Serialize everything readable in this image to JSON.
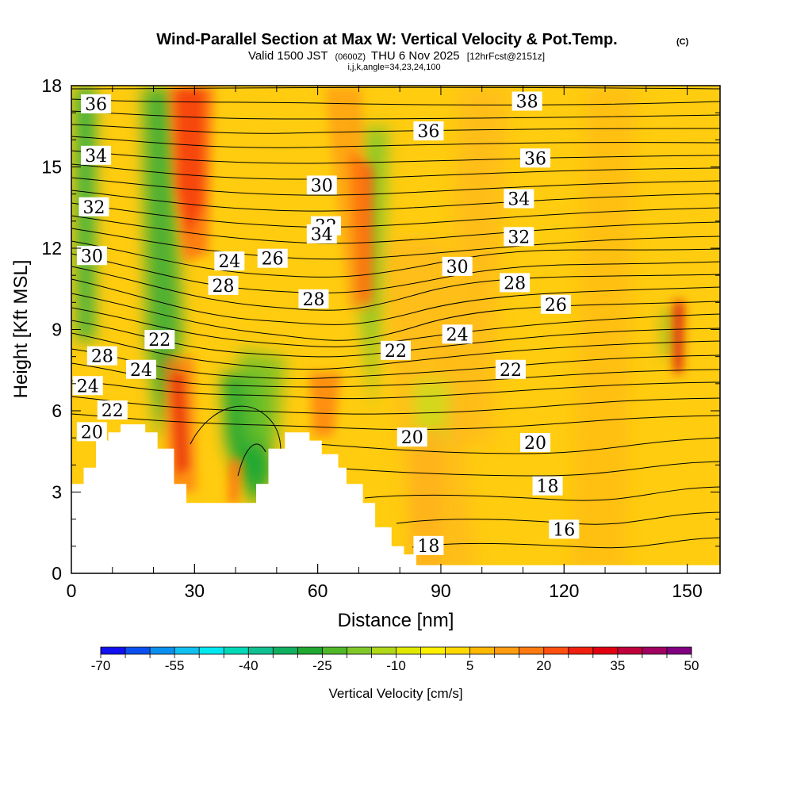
{
  "chart_data": {
    "type": "heatmap",
    "title": "Wind-Parallel Section at Max W: Vertical Velocity & Pot.Temp.",
    "title_mark": "(C)",
    "subtitle_parts": [
      "Valid 1500 JST",
      "(0600Z)",
      "THU 6 Nov 2025",
      "[12hrFcst@2151z]"
    ],
    "subtitle2": "i,j,k,angle=34,23,24,100",
    "xlabel": "Distance [nm]",
    "ylabel": "Height [Kft MSL]",
    "xlim": [
      0,
      158
    ],
    "ylim": [
      0,
      18
    ],
    "x_ticks": [
      0,
      30,
      60,
      90,
      120,
      150
    ],
    "y_ticks": [
      0,
      3,
      6,
      9,
      12,
      15,
      18
    ],
    "colorbar": {
      "label": "Vertical Velocity [cm/s]",
      "min": -70,
      "max": 50,
      "step": 5,
      "tick_values": [
        -70,
        -55,
        -40,
        -25,
        -10,
        5,
        20,
        35,
        50
      ],
      "colors": [
        "#1010f0",
        "#0a50f0",
        "#0a90ee",
        "#10c0f0",
        "#00e8f0",
        "#00d8b8",
        "#10c090",
        "#10b060",
        "#20a830",
        "#50b828",
        "#80c828",
        "#b0d818",
        "#e0e800",
        "#fff000",
        "#ffd800",
        "#ffb800",
        "#ff9c10",
        "#ff7a10",
        "#ff5010",
        "#f02010",
        "#e00010",
        "#c0003a",
        "#a00060",
        "#800080"
      ]
    },
    "theta_contour_labels": [
      {
        "v": "36",
        "x": 6,
        "y": 17.3
      },
      {
        "v": "34",
        "x": 6,
        "y": 15.4
      },
      {
        "v": "32",
        "x": 5.5,
        "y": 13.5
      },
      {
        "v": "30",
        "x": 5,
        "y": 11.7
      },
      {
        "v": "28",
        "x": 7.5,
        "y": 8.0
      },
      {
        "v": "28",
        "x": 37,
        "y": 10.6
      },
      {
        "v": "24",
        "x": 4,
        "y": 6.9
      },
      {
        "v": "20",
        "x": 5,
        "y": 5.2
      },
      {
        "v": "22",
        "x": 10,
        "y": 6.0
      },
      {
        "v": "24",
        "x": 17,
        "y": 7.5
      },
      {
        "v": "22",
        "x": 21.5,
        "y": 8.6
      },
      {
        "v": "24",
        "x": 38.5,
        "y": 11.5
      },
      {
        "v": "26",
        "x": 49,
        "y": 11.6
      },
      {
        "v": "28",
        "x": 59,
        "y": 10.1
      },
      {
        "v": "30",
        "x": 61,
        "y": 14.3
      },
      {
        "v": "32",
        "x": 62,
        "y": 12.8
      },
      {
        "v": "34",
        "x": 61,
        "y": 12.5
      },
      {
        "v": "36",
        "x": 87,
        "y": 16.3
      },
      {
        "v": "22",
        "x": 79,
        "y": 8.2
      },
      {
        "v": "20",
        "x": 83,
        "y": 5.0
      },
      {
        "v": "18",
        "x": 87,
        "y": 1.0
      },
      {
        "v": "38",
        "x": 111,
        "y": 17.4
      },
      {
        "v": "36",
        "x": 113,
        "y": 15.3
      },
      {
        "v": "34",
        "x": 109,
        "y": 13.8
      },
      {
        "v": "32",
        "x": 109,
        "y": 12.4
      },
      {
        "v": "30",
        "x": 94,
        "y": 11.3
      },
      {
        "v": "28",
        "x": 108,
        "y": 10.7
      },
      {
        "v": "26",
        "x": 118,
        "y": 9.9
      },
      {
        "v": "24",
        "x": 94,
        "y": 8.8
      },
      {
        "v": "22",
        "x": 107,
        "y": 7.5
      },
      {
        "v": "20",
        "x": 113,
        "y": 4.8
      },
      {
        "v": "18",
        "x": 116,
        "y": 3.2
      },
      {
        "v": "16",
        "x": 120,
        "y": 1.6
      }
    ],
    "theta_label_texts": [
      "36",
      "34",
      "32",
      "30",
      "28",
      "28",
      "24",
      "20",
      "22",
      "24",
      "22",
      "24",
      "26",
      "28",
      "30",
      "32",
      "34",
      "36",
      "22",
      "20",
      "18",
      "38",
      "36",
      "34",
      "32",
      "30",
      "28",
      "26",
      "24",
      "22",
      "20",
      "18",
      "16"
    ],
    "terrain_kft": [
      [
        0,
        3.3
      ],
      [
        3,
        3.3
      ],
      [
        3,
        3.9
      ],
      [
        6,
        3.9
      ],
      [
        6,
        4.9
      ],
      [
        9,
        4.9
      ],
      [
        9,
        5.2
      ],
      [
        12,
        5.2
      ],
      [
        12,
        5.5
      ],
      [
        18,
        5.5
      ],
      [
        18,
        5.2
      ],
      [
        21,
        5.2
      ],
      [
        21,
        4.6
      ],
      [
        25,
        4.6
      ],
      [
        25,
        3.3
      ],
      [
        28,
        3.3
      ],
      [
        28,
        2.6
      ],
      [
        45,
        2.6
      ],
      [
        45,
        3.3
      ],
      [
        48,
        3.3
      ],
      [
        48,
        4.6
      ],
      [
        52,
        4.6
      ],
      [
        52,
        5.2
      ],
      [
        58,
        5.2
      ],
      [
        58,
        4.9
      ],
      [
        61,
        4.9
      ],
      [
        61,
        4.4
      ],
      [
        65,
        4.4
      ],
      [
        65,
        3.9
      ],
      [
        67,
        3.9
      ],
      [
        67,
        3.3
      ],
      [
        71,
        3.3
      ],
      [
        71,
        2.6
      ],
      [
        74,
        2.6
      ],
      [
        74,
        1.7
      ],
      [
        78,
        1.7
      ],
      [
        78,
        1.0
      ],
      [
        81,
        1.0
      ],
      [
        81,
        0.7
      ],
      [
        84,
        0.7
      ],
      [
        84,
        0.3
      ],
      [
        158,
        0.3
      ],
      [
        158,
        0
      ],
      [
        0,
        0
      ]
    ]
  }
}
